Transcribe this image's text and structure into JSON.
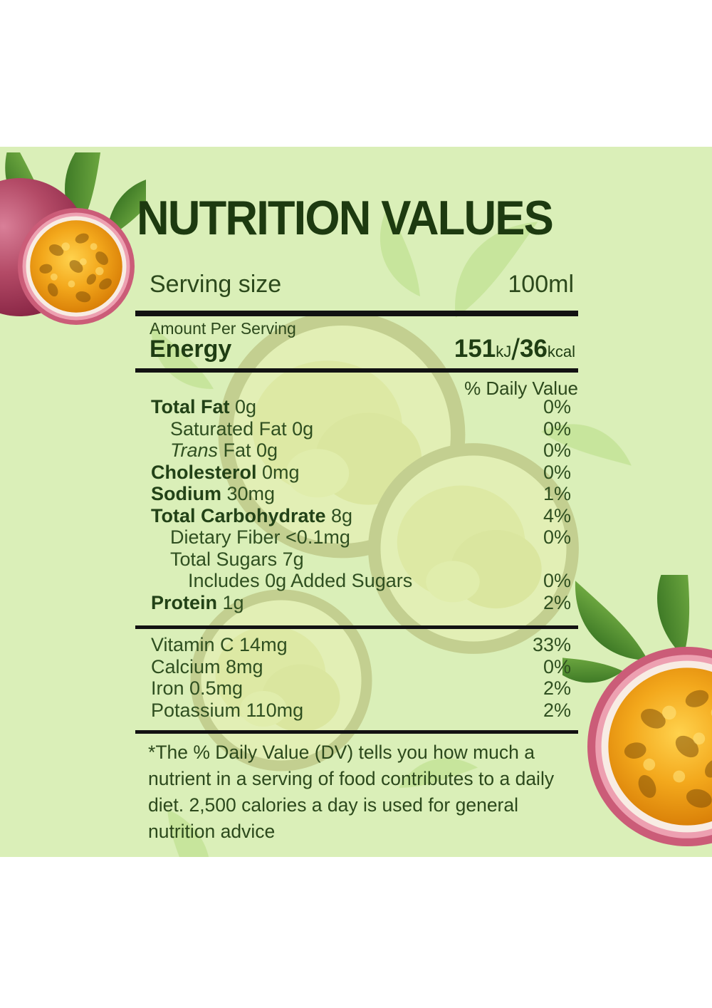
{
  "title": "NUTRITION VALUES",
  "serving_row": {
    "label": "Serving size",
    "value": "100ml"
  },
  "amount_per_serving": "Amount Per Serving",
  "energy": {
    "label": "Energy",
    "kj_value": "151",
    "kj_unit": "kJ",
    "slash": "/",
    "kcal_value": "36",
    "kcal_unit": "kcal"
  },
  "daily_value_header": "% Daily Value",
  "nutrients": [
    {
      "segments": [
        {
          "t": "Total Fat",
          "b": true
        },
        {
          "t": " 0g"
        }
      ],
      "dv": "0%",
      "indent": 0
    },
    {
      "segments": [
        {
          "t": "Saturated Fat 0g"
        }
      ],
      "dv": "0%",
      "indent": 1
    },
    {
      "segments": [
        {
          "t": "Trans",
          "i": true
        },
        {
          "t": " Fat 0g"
        }
      ],
      "dv": "0%",
      "indent": 1
    },
    {
      "segments": [
        {
          "t": "Cholesterol",
          "b": true
        },
        {
          "t": " 0mg"
        }
      ],
      "dv": "0%",
      "indent": 0
    },
    {
      "segments": [
        {
          "t": "Sodium",
          "b": true
        },
        {
          "t": " 30mg"
        }
      ],
      "dv": "1%",
      "indent": 0
    },
    {
      "segments": [
        {
          "t": "Total Carbohydrate",
          "b": true
        },
        {
          "t": " 8g"
        }
      ],
      "dv": "4%",
      "indent": 0
    },
    {
      "segments": [
        {
          "t": "Dietary Fiber <0.1mg"
        }
      ],
      "dv": "0%",
      "indent": 1
    },
    {
      "segments": [
        {
          "t": "Total Sugars 7g"
        }
      ],
      "dv": "",
      "indent": 1
    },
    {
      "segments": [
        {
          "t": "Includes 0g Added Sugars"
        }
      ],
      "dv": "0%",
      "indent": 2
    },
    {
      "segments": [
        {
          "t": "Protein",
          "b": true
        },
        {
          "t": " 1g"
        }
      ],
      "dv": "2%",
      "indent": 0
    }
  ],
  "minerals": [
    {
      "segments": [
        {
          "t": "Vitamin C 14mg"
        }
      ],
      "dv": "33%",
      "indent": 0
    },
    {
      "segments": [
        {
          "t": "Calcium 8mg"
        }
      ],
      "dv": "0%",
      "indent": 0
    },
    {
      "segments": [
        {
          "t": "Iron 0.5mg"
        }
      ],
      "dv": "2%",
      "indent": 0
    },
    {
      "segments": [
        {
          "t": "Potassium 110mg"
        }
      ],
      "dv": "2%",
      "indent": 0
    }
  ],
  "footnote": "*The % Daily Value (DV) tells you how much a nutrient in a serving of food contributes to a daily diet. 2,500 calories a day is used for general nutrition advice",
  "colors": {
    "background_green": "#daefb8",
    "title_green": "#1d3a10",
    "text_green": "#2c491c",
    "rule_black": "#121212",
    "fruit_rim_pink": "#cb5c78",
    "fruit_pulp_orange": "#f3a81c",
    "leaf_green": "#3f7a28"
  },
  "images": {
    "top_left": "passion-fruit-whole-and-half-with-leaves",
    "bottom_right": "passion-fruit-half-with-leaf",
    "background": "faded-passion-fruit-watermark"
  }
}
